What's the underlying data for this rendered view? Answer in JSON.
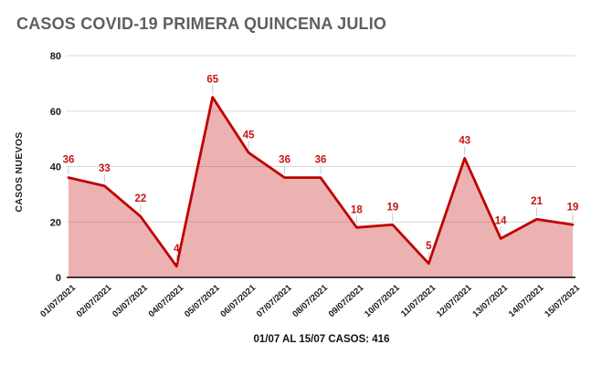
{
  "title": "CASOS COVID-19 PRIMERA QUINCENA JULIO",
  "footer_note": "01/07 AL 15/07 CASOS: 416",
  "colors": {
    "line": "#c00000",
    "fill": "rgba(192,0,0,0.30)",
    "data_label": "#c71414",
    "grid": "#d9d9d9",
    "axis": "#000000",
    "tick_text": "#1a1a1a",
    "title_text": "#5f5f5f",
    "leader_line": "#c9c9c9"
  },
  "chart_data": {
    "type": "area",
    "title": "CASOS COVID-19 PRIMERA QUINCENA JULIO",
    "xlabel": "",
    "ylabel": "CASOS NUEVOS",
    "categories": [
      "01/07/2021",
      "02/07/2021",
      "03/07/2021",
      "04/07/2021",
      "05/07/2021",
      "06/07/2021",
      "07/07/2021",
      "08/07/2021",
      "09/07/2021",
      "10/07/2021",
      "11/07/2021",
      "12/07/2021",
      "13/07/2021",
      "14/07/2021",
      "15/07/2021"
    ],
    "values": [
      36,
      33,
      22,
      4,
      65,
      45,
      36,
      36,
      18,
      19,
      5,
      43,
      14,
      21,
      19
    ],
    "ylim": [
      0,
      80
    ],
    "yticks": [
      0,
      20,
      40,
      60,
      80
    ],
    "grid": true,
    "legend_position": "none",
    "data_labels": "shown in red above each point",
    "footer_note": "01/07 AL 15/07 CASOS: 416"
  }
}
